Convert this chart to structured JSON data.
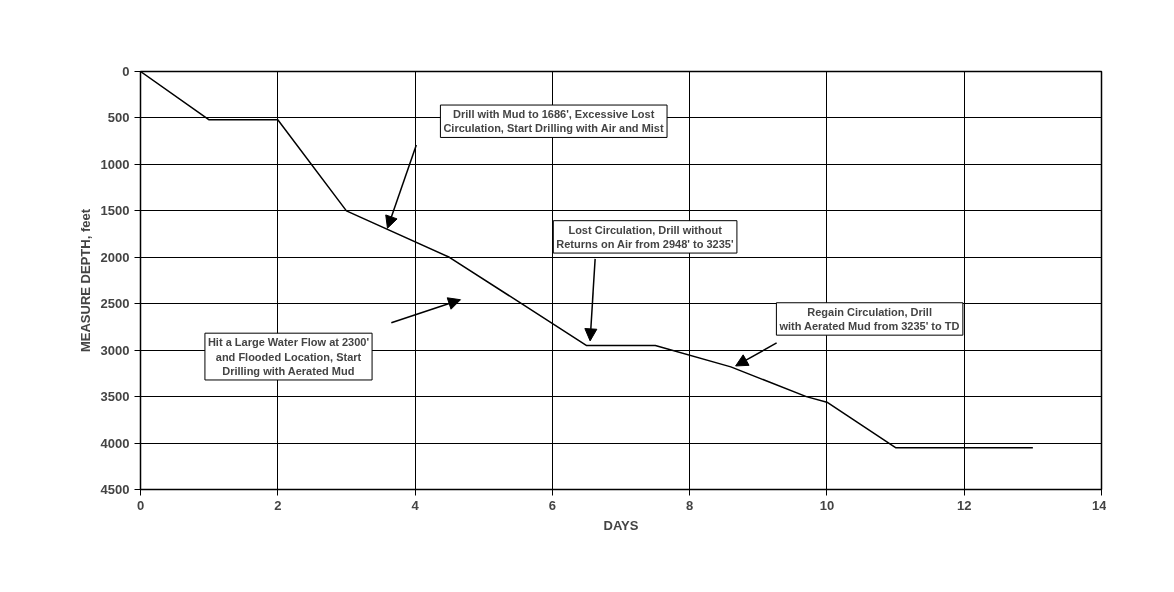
{
  "chart_data": {
    "type": "line",
    "xlabel": "DAYS",
    "ylabel": "MEASURE DEPTH, feet",
    "x": [
      0,
      1,
      2,
      3,
      4.5,
      6.5,
      7.5,
      8.6,
      9.7,
      10,
      11,
      13
    ],
    "series": [
      {
        "color": "#000000",
        "values": [
          0,
          520,
          520,
          1500,
          2000,
          2950,
          2950,
          3180,
          3500,
          3560,
          4050,
          4050
        ]
      }
    ],
    "xlim": [
      0,
      14
    ],
    "xticks": [
      0,
      2,
      4,
      6,
      8,
      10,
      12,
      14
    ],
    "ylim": [
      4500,
      0
    ],
    "yticks": [
      0,
      500,
      1000,
      1500,
      2000,
      2500,
      3000,
      3500,
      4000,
      4500
    ],
    "grid": true,
    "marker": "none",
    "line_style": "solid",
    "annotations": [
      "Drill with Mud to 1686', Excessive Lost\nCirculation, Start Drilling with Air and Mist",
      {
        "text": "Lost Circulation, Drill without\nReturns on Air from 2948' to 3235'",
        "x": 6.55,
        "y": 2900
      },
      {
        "text": "Regain Circulation, Drill\nwith Aerated Mud from 3235' to TD",
        "x": 8.67,
        "y": 3170
      },
      "Hit a Large Water Flow at 2300'\nand Flooded Location, Start\nDrilling with Aerated Mud"
    ]
  }
}
